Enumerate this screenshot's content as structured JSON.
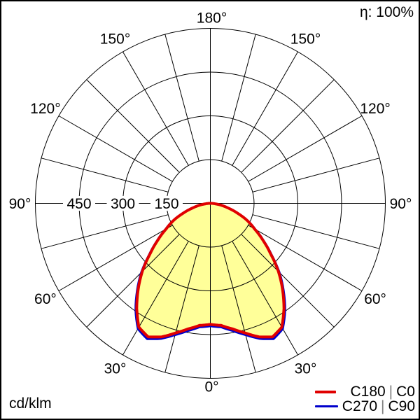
{
  "header": {
    "efficiency_label": "η: 100%"
  },
  "footer": {
    "unit_label": "cd/klm"
  },
  "legend": {
    "separator_color": "#808080",
    "items": [
      {
        "label": "C180 | C0",
        "parts": {
          "left": "C180",
          "separator": "|",
          "right": "C0"
        },
        "color": "#e00000",
        "line_width": 4
      },
      {
        "label": "C270 | C90",
        "parts": {
          "left": "C270",
          "separator": "|",
          "right": "C90"
        },
        "color": "#0000cc",
        "line_width": 3
      }
    ]
  },
  "chart_data": {
    "type": "line",
    "polar": true,
    "subtype": "photometric-intensity-distribution",
    "units": "cd/klm",
    "efficiency": "100%",
    "rmax": 600,
    "rings": {
      "values": [
        150,
        300,
        450,
        600
      ],
      "labeled": [
        "450",
        "300",
        "150"
      ]
    },
    "spoke_step_deg": 15,
    "angle_tick_labels": [
      "0°",
      "30°",
      "60°",
      "90°",
      "120°",
      "150°",
      "180°"
    ],
    "gamma_angles_deg": [
      0,
      5,
      10,
      15,
      20,
      25,
      30,
      35,
      40,
      45,
      50,
      55,
      60,
      65,
      70,
      75,
      80,
      85,
      90
    ],
    "fill_color": "#ffff99",
    "grid_color": "#000000",
    "legend_position": "bottom-right",
    "series": [
      {
        "name": "C180 | C0",
        "color": "#e00000",
        "symmetric": true,
        "values": [
          415,
          420,
          437,
          460,
          487,
          505,
          490,
          440,
          385,
          330,
          270,
          220,
          175,
          140,
          100,
          65,
          38,
          16,
          2
        ]
      },
      {
        "name": "C270 | C90",
        "color": "#0000cc",
        "symmetric": true,
        "values": [
          421,
          426,
          444,
          467,
          494,
          513,
          497,
          447,
          391,
          335,
          274,
          223,
          178,
          142,
          102,
          66,
          39,
          16,
          2
        ]
      }
    ]
  }
}
